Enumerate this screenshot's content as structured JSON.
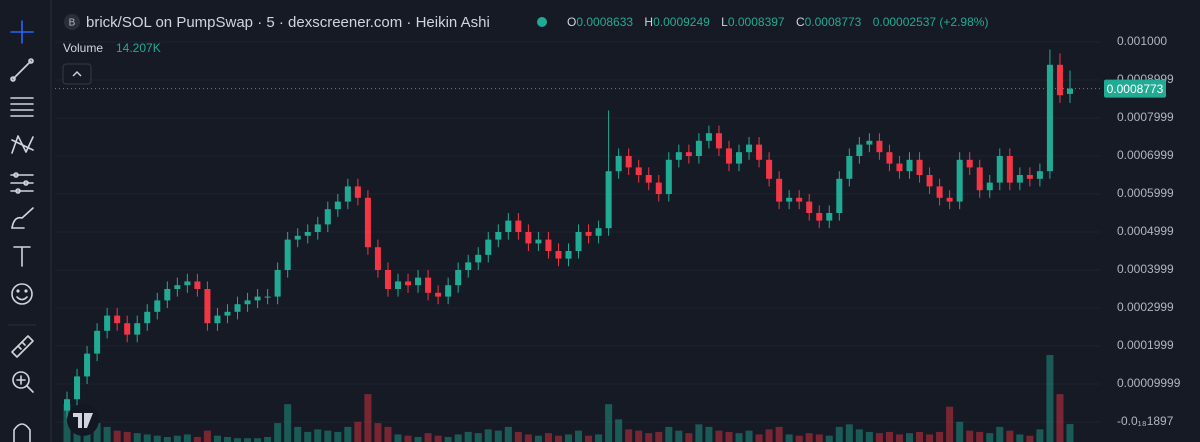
{
  "header": {
    "badge": "B",
    "title": "brick/SOL on PumpSwap · 5 · dexscreener.com · Heikin Ashi",
    "ohlc": [
      {
        "key": "O",
        "value": "0.0008633"
      },
      {
        "key": "H",
        "value": "0.0009249"
      },
      {
        "key": "L",
        "value": "0.0008397"
      },
      {
        "key": "C",
        "value": "0.0008773"
      }
    ],
    "change": "0.00002537 (+2.98%)"
  },
  "volume_legend": {
    "label": "Volume",
    "value": "14.207K"
  },
  "chart_data": {
    "type": "candlestick",
    "up_color": "#22ab94",
    "down_color": "#f23645",
    "grid": true,
    "ylim": [
      -5.26e-05,
      0.0011105
    ],
    "yticks": [
      {
        "value": 0.001,
        "label": "0.001000"
      },
      0.0008999,
      0.0007999,
      0.0006999,
      0.0005999,
      0.0004999,
      0.0003999,
      0.0002999,
      0.0001999,
      9.999e-05,
      {
        "value": -1.897e-19,
        "label": "-0.0₁₈1897"
      }
    ],
    "last_price": 0.0008773,
    "open": [
      3e-05,
      6e-05,
      0.00012,
      0.00018,
      0.00024,
      0.00028,
      0.00026,
      0.00023,
      0.00026,
      0.00029,
      0.00032,
      0.00035,
      0.00036,
      0.00037,
      0.00035,
      0.00026,
      0.00028,
      0.00029,
      0.00031,
      0.00032,
      0.00033,
      0.00033,
      0.0004,
      0.00048,
      0.00049,
      0.0005,
      0.00052,
      0.00056,
      0.00058,
      0.00062,
      0.00059,
      0.00046,
      0.0004,
      0.00035,
      0.00037,
      0.00036,
      0.00038,
      0.00034,
      0.00033,
      0.00036,
      0.0004,
      0.00042,
      0.00044,
      0.00048,
      0.0005,
      0.00053,
      0.0005,
      0.00047,
      0.00048,
      0.00045,
      0.00043,
      0.00045,
      0.0005,
      0.00049,
      0.00051,
      0.00066,
      0.0007,
      0.00067,
      0.00065,
      0.00063,
      0.0006,
      0.00069,
      0.00071,
      0.0007,
      0.00074,
      0.00076,
      0.00072,
      0.00068,
      0.00071,
      0.00073,
      0.00069,
      0.00064,
      0.00058,
      0.00059,
      0.00058,
      0.00055,
      0.00053,
      0.00055,
      0.00064,
      0.0007,
      0.00073,
      0.00074,
      0.00071,
      0.00068,
      0.00066,
      0.00069,
      0.00065,
      0.00062,
      0.00059,
      0.00058,
      0.00069,
      0.00067,
      0.00061,
      0.00063,
      0.0007,
      0.00063,
      0.00065,
      0.00064,
      0.00066,
      0.00094,
      0.0008633
    ],
    "high": [
      8e-05,
      0.00014,
      0.0002,
      0.00026,
      0.0003,
      0.0003,
      0.00028,
      0.00028,
      0.00031,
      0.00034,
      0.00037,
      0.00038,
      0.00039,
      0.00039,
      0.00037,
      0.0003,
      0.00031,
      0.00033,
      0.00034,
      0.00035,
      0.00035,
      0.00042,
      0.0005,
      0.00051,
      0.00052,
      0.00054,
      0.00058,
      0.0006,
      0.00064,
      0.00064,
      0.00061,
      0.00048,
      0.00042,
      0.00039,
      0.00039,
      0.0004,
      0.0004,
      0.00036,
      0.00038,
      0.00042,
      0.00044,
      0.00046,
      0.0005,
      0.00052,
      0.00055,
      0.00055,
      0.00052,
      0.0005,
      0.0005,
      0.00047,
      0.00047,
      0.00052,
      0.00052,
      0.00053,
      0.00082,
      0.00072,
      0.00072,
      0.00069,
      0.00067,
      0.00065,
      0.00071,
      0.00073,
      0.00073,
      0.00076,
      0.00078,
      0.00078,
      0.00074,
      0.00073,
      0.00075,
      0.00075,
      0.00071,
      0.00066,
      0.00061,
      0.00061,
      0.0006,
      0.00057,
      0.00057,
      0.00066,
      0.00072,
      0.00075,
      0.00076,
      0.00076,
      0.00073,
      0.0007,
      0.00071,
      0.00071,
      0.00067,
      0.00064,
      0.00061,
      0.00071,
      0.00071,
      0.00069,
      0.00065,
      0.00072,
      0.00072,
      0.00067,
      0.00067,
      0.00068,
      0.00098,
      0.00097,
      0.0009249
    ],
    "low": [
      1e-05,
      4e-05,
      0.0001,
      0.00016,
      0.00022,
      0.00024,
      0.00021,
      0.00021,
      0.00024,
      0.00027,
      0.0003,
      0.00033,
      0.00034,
      0.00033,
      0.00024,
      0.00024,
      0.00026,
      0.00027,
      0.00029,
      0.0003,
      0.00031,
      0.00031,
      0.00038,
      0.00046,
      0.00047,
      0.00048,
      0.0005,
      0.00054,
      0.00056,
      0.00057,
      0.00044,
      0.00038,
      0.00033,
      0.00033,
      0.00034,
      0.00034,
      0.00032,
      0.00031,
      0.00031,
      0.00034,
      0.00038,
      0.0004,
      0.00042,
      0.00046,
      0.00048,
      0.00048,
      0.00045,
      0.00045,
      0.00043,
      0.00041,
      0.00041,
      0.00043,
      0.00047,
      0.00047,
      0.00049,
      0.00064,
      0.00065,
      0.00063,
      0.00061,
      0.00058,
      0.00058,
      0.00067,
      0.00068,
      0.00068,
      0.00072,
      0.0007,
      0.00066,
      0.00066,
      0.00069,
      0.00067,
      0.00062,
      0.00056,
      0.00056,
      0.00056,
      0.00053,
      0.00051,
      0.00051,
      0.00053,
      0.00062,
      0.00068,
      0.00071,
      0.00069,
      0.00066,
      0.00064,
      0.00064,
      0.00063,
      0.0006,
      0.00057,
      0.00056,
      0.00056,
      0.00065,
      0.00059,
      0.00059,
      0.00061,
      0.00061,
      0.00061,
      0.00062,
      0.00062,
      0.00064,
      0.00084,
      0.0008397
    ],
    "close": [
      6e-05,
      0.00012,
      0.00018,
      0.00024,
      0.00028,
      0.00026,
      0.00023,
      0.00026,
      0.00029,
      0.00032,
      0.00035,
      0.00036,
      0.00037,
      0.00035,
      0.00026,
      0.00028,
      0.00029,
      0.00031,
      0.00032,
      0.00033,
      0.00033,
      0.0004,
      0.00048,
      0.00049,
      0.0005,
      0.00052,
      0.00056,
      0.00058,
      0.00062,
      0.00059,
      0.00046,
      0.0004,
      0.00035,
      0.00037,
      0.00036,
      0.00038,
      0.00034,
      0.00033,
      0.00036,
      0.0004,
      0.00042,
      0.00044,
      0.00048,
      0.0005,
      0.00053,
      0.0005,
      0.00047,
      0.00048,
      0.00045,
      0.00043,
      0.00045,
      0.0005,
      0.00049,
      0.00051,
      0.00066,
      0.0007,
      0.00067,
      0.00065,
      0.00063,
      0.0006,
      0.00069,
      0.00071,
      0.0007,
      0.00074,
      0.00076,
      0.00072,
      0.00068,
      0.00071,
      0.00073,
      0.00069,
      0.00064,
      0.00058,
      0.00059,
      0.00058,
      0.00055,
      0.00053,
      0.00055,
      0.00064,
      0.0007,
      0.00073,
      0.00074,
      0.00071,
      0.00068,
      0.00066,
      0.00069,
      0.00065,
      0.00062,
      0.00059,
      0.00058,
      0.00069,
      0.00067,
      0.00061,
      0.00063,
      0.0007,
      0.00063,
      0.00065,
      0.00064,
      0.00066,
      0.00094,
      0.00086,
      0.0008773
    ],
    "volume": [
      30000,
      22000,
      18000,
      15000,
      12000,
      9000,
      8000,
      7000,
      6000,
      5000,
      4000,
      5000,
      6000,
      4000,
      9000,
      5000,
      4000,
      3000,
      3000,
      3000,
      4000,
      15000,
      30000,
      12000,
      8000,
      10000,
      9000,
      8000,
      12000,
      16000,
      38000,
      15000,
      12000,
      6000,
      5000,
      4000,
      7000,
      5000,
      4000,
      6000,
      8000,
      7000,
      10000,
      9000,
      12000,
      8000,
      6000,
      5000,
      7000,
      5000,
      6000,
      9000,
      5000,
      6000,
      30000,
      18000,
      10000,
      9000,
      7000,
      8000,
      12000,
      9000,
      7000,
      14000,
      12000,
      9000,
      8000,
      7000,
      9000,
      6000,
      10000,
      12000,
      6000,
      5000,
      7000,
      6000,
      5000,
      12000,
      14000,
      10000,
      8000,
      7000,
      8000,
      6000,
      7000,
      8000,
      6000,
      8000,
      28000,
      16000,
      9000,
      8000,
      7000,
      12000,
      9000,
      6000,
      5000,
      10000,
      69000,
      38000,
      14207
    ]
  }
}
